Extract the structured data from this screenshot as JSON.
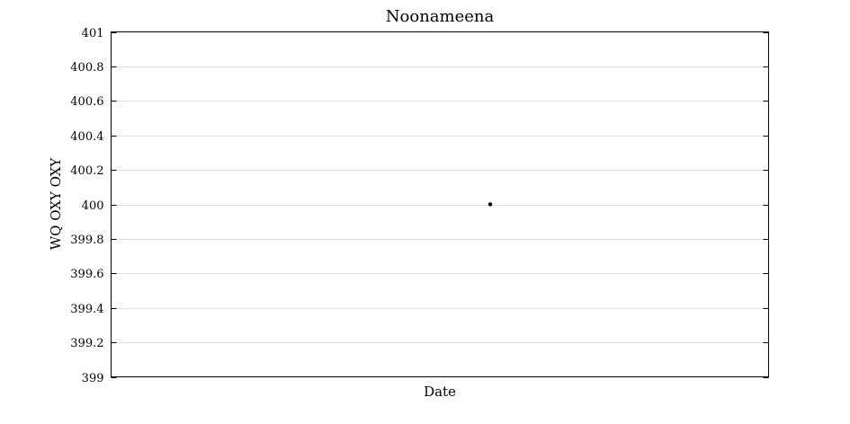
{
  "chart_data": {
    "type": "scatter",
    "title": "Noonameena",
    "xlabel": "Date",
    "ylabel": "WQ OXY OXY",
    "ylim": [
      399,
      401
    ],
    "yticks": [
      399,
      399.2,
      399.4,
      399.6,
      399.8,
      400,
      400.2,
      400.4,
      400.6,
      400.8,
      401
    ],
    "ytick_labels": [
      "399",
      "399.2",
      "399.4",
      "399.6",
      "399.8",
      "400",
      "400.2",
      "400.4",
      "400.6",
      "400.8",
      "401"
    ],
    "grid": true,
    "series": [
      {
        "points": [
          {
            "y": 400
          }
        ],
        "color": "#000000"
      }
    ]
  }
}
